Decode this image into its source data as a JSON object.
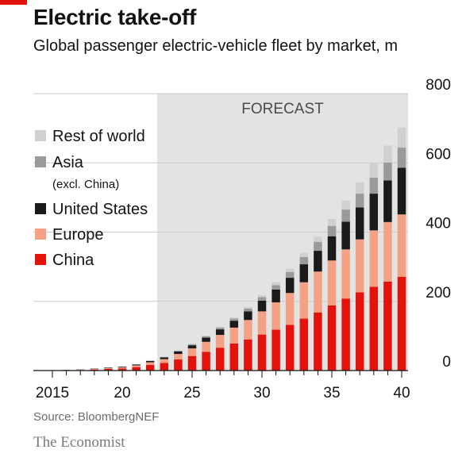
{
  "header": {
    "title": "Electric take-off",
    "subtitle": "Global passenger electric-vehicle fleet by market, m"
  },
  "footer": {
    "source": "Source: BloombergNEF",
    "brand": "The Economist"
  },
  "colors": {
    "accent": "#e3120b",
    "china": "#e3120b",
    "europe": "#f4a186",
    "united_states": "#1a1a1a",
    "asia": "#9a9a9a",
    "rest_of_world": "#d0d0d0",
    "forecast_band": "#e3e3e3"
  },
  "chart_data": {
    "type": "bar",
    "stacked": true,
    "forecast_label": "FORECAST",
    "forecast_range": [
      2023,
      2040
    ],
    "x": [
      2015,
      2016,
      2017,
      2018,
      2019,
      2020,
      2021,
      2022,
      2023,
      2024,
      2025,
      2026,
      2027,
      2028,
      2029,
      2030,
      2031,
      2032,
      2033,
      2034,
      2035,
      2036,
      2037,
      2038,
      2039,
      2040
    ],
    "x_tick_values": [
      2015,
      2020,
      2025,
      2030,
      2035,
      2040
    ],
    "x_tick_labels": [
      "2015",
      "20",
      "25",
      "30",
      "35",
      "40"
    ],
    "y_ticks": [
      0,
      200,
      400,
      600,
      800
    ],
    "ylim": [
      0,
      800
    ],
    "y_axis_side": "right",
    "grid": true,
    "legend_position": "top-left",
    "series": [
      {
        "name": "China",
        "color": "#e3120b",
        "values": [
          0.5,
          1,
          1.5,
          3,
          5,
          6,
          10,
          16,
          22,
          32,
          42,
          54,
          66,
          78,
          90,
          104,
          118,
          132,
          150,
          168,
          188,
          208,
          226,
          242,
          257,
          271
        ]
      },
      {
        "name": "Europe",
        "color": "#f4a186",
        "values": [
          0.3,
          0.5,
          1,
          1.5,
          2,
          3,
          5,
          8,
          11,
          16,
          22,
          29,
          37,
          46,
          56,
          67,
          79,
          92,
          105,
          118,
          130,
          142,
          153,
          163,
          172,
          180
        ]
      },
      {
        "name": "United States",
        "color": "#1a1a1a",
        "values": [
          0.3,
          0.5,
          0.7,
          1,
          1.5,
          2,
          2.5,
          3.5,
          5,
          7,
          9,
          12,
          16,
          20,
          25,
          31,
          37,
          44,
          52,
          60,
          70,
          80,
          92,
          106,
          120,
          135
        ]
      },
      {
        "name": "Asia",
        "legend_sub": "(excl. China)",
        "color": "#9a9a9a",
        "values": [
          0.1,
          0.1,
          0.2,
          0.3,
          0.4,
          0.5,
          0.6,
          0.8,
          1.2,
          2,
          3,
          4,
          5,
          6,
          8,
          10,
          13,
          17,
          21,
          26,
          30,
          35,
          40,
          46,
          52,
          58
        ]
      },
      {
        "name": "Rest of world",
        "color": "#d0d0d0",
        "values": [
          0.1,
          0.1,
          0.1,
          0.2,
          0.3,
          0.4,
          0.5,
          0.6,
          0.8,
          1,
          1.5,
          2,
          3,
          4,
          5,
          6,
          8,
          10,
          12,
          15,
          20,
          26,
          33,
          41,
          49,
          58
        ]
      }
    ]
  }
}
